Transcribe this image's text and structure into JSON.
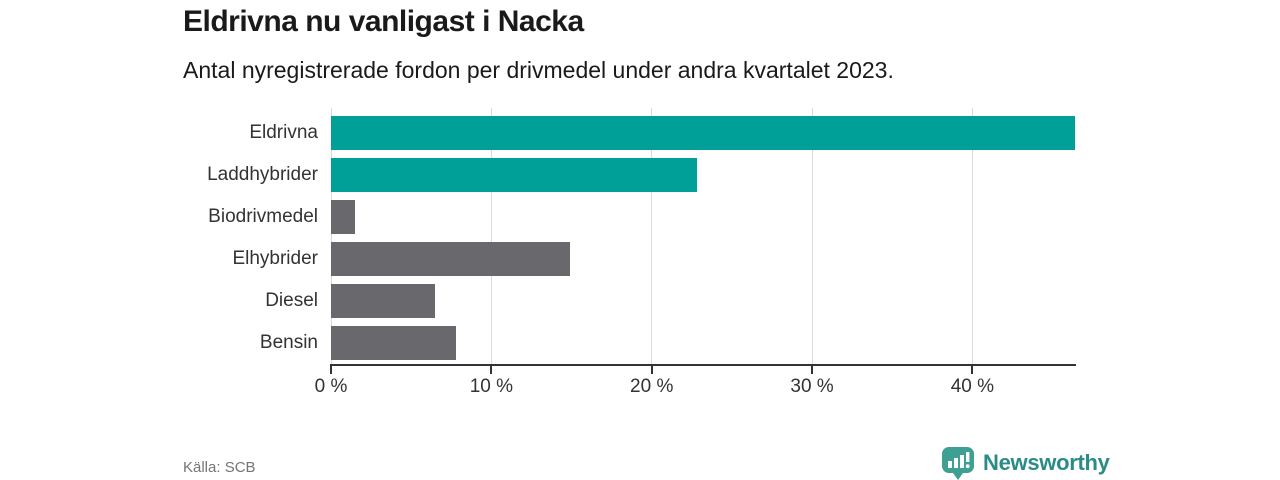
{
  "chart_data": {
    "type": "bar",
    "orientation": "horizontal",
    "title": "Eldrivna nu vanligast i Nacka",
    "subtitle": "Antal nyregistrerade fordon per drivmedel under andra kvartalet 2023.",
    "categories": [
      "Eldrivna",
      "Laddhybrider",
      "Biodrivmedel",
      "Elhybrider",
      "Diesel",
      "Bensin"
    ],
    "values": [
      46.4,
      22.8,
      1.5,
      14.9,
      6.5,
      7.8
    ],
    "unit": "%",
    "xlabel": "",
    "ylabel": "",
    "xlim": [
      0,
      46.4
    ],
    "x_ticks": [
      0,
      10,
      20,
      30,
      40
    ],
    "x_tick_labels": [
      "0 %",
      "10 %",
      "20 %",
      "30 %",
      "40 %"
    ],
    "grid": true,
    "legend": false,
    "bar_colors": [
      "#00a099",
      "#00a099",
      "#69696d",
      "#69696d",
      "#69696d",
      "#69696d"
    ],
    "highlight_color": "#00a099",
    "default_color": "#69696d"
  },
  "footer": {
    "source_label": "Källa: SCB",
    "brand": "Newsworthy"
  },
  "colors": {
    "accent_teal": "#00a099",
    "bar_gray": "#69696d",
    "gridline": "#d9d9d9",
    "axis": "#333333",
    "logo_text_teal": "#2b8c86",
    "logo_icon_teal": "#3da093"
  }
}
